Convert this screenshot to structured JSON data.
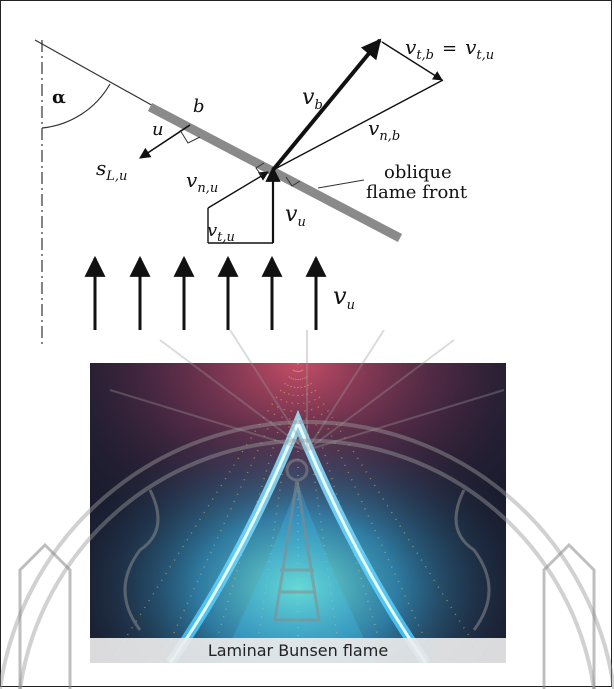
{
  "labels": {
    "alpha": "α",
    "b": "b",
    "u": "u",
    "v_b": "v",
    "v_b_sub": "b",
    "v_tb_lhs": "v",
    "v_tb_lhs_sub": "t,b",
    "v_tb_eq": "=",
    "v_tb_rhs": "v",
    "v_tb_rhs_sub": "t,u",
    "v_nb": "v",
    "v_nb_sub": "n,b",
    "s_Lu": "s",
    "s_Lu_sub": "L,u",
    "v_nu": "v",
    "v_nu_sub": "n,u",
    "v_u_near": "v",
    "v_u_near_sub": "u",
    "v_tu": "v",
    "v_tu_sub": "t,u",
    "v_u_arrows": "v",
    "v_u_arrows_sub": "u",
    "oblique_line1": "oblique",
    "oblique_line2": "flame front"
  },
  "photo": {
    "caption": "Laminar Bunsen flame"
  },
  "colors": {
    "flame_front": "#8a8a8a",
    "ink": "#111111",
    "flame_blue": "#3fc8ff",
    "flame_pink": "#d0506a",
    "photo_bg": "#1a1c2e",
    "watermark": "#9a9a9a"
  },
  "icons": {
    "watermark": "university-seal-watermark"
  }
}
